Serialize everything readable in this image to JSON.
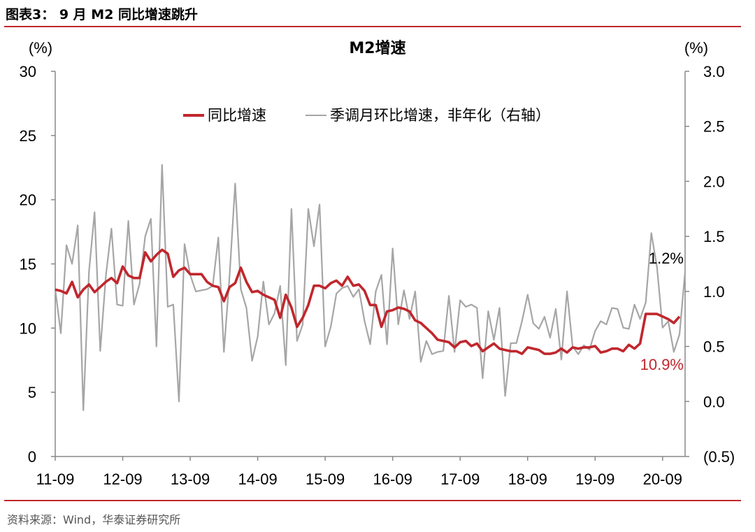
{
  "figure": {
    "title": "图表3：  9 月 M2 同比增速跳升",
    "source": "资料来源：Wind，华泰证券研究所"
  },
  "colors": {
    "yoy": "#c0272d",
    "mom": "#a6a6a6",
    "rule": "#c0272d",
    "axis": "#888888"
  },
  "chart_data": {
    "type": "line",
    "title": "M2增速",
    "left_unit": "(%)",
    "right_unit": "(%)",
    "left_ylim": [
      0,
      30
    ],
    "left_ticks": [
      "0",
      "5",
      "10",
      "15",
      "20",
      "25",
      "30"
    ],
    "right_ylim": [
      -0.5,
      3.0
    ],
    "right_ticks": [
      "(0.5)",
      "0.0",
      "0.5",
      "1.0",
      "1.5",
      "2.0",
      "2.5",
      "3.0"
    ],
    "x_start": "2011-09",
    "x_labels": [
      "11-09",
      "12-09",
      "13-09",
      "14-09",
      "15-09",
      "16-09",
      "17-09",
      "18-09",
      "19-09",
      "20-09"
    ],
    "legend_position": "top",
    "series": [
      {
        "name": "同比增速",
        "axis": "left",
        "values": [
          13.0,
          12.9,
          12.7,
          13.6,
          12.4,
          13.0,
          13.4,
          12.8,
          13.2,
          13.6,
          13.9,
          13.5,
          14.8,
          14.1,
          13.9,
          13.9,
          15.9,
          15.2,
          15.7,
          16.1,
          15.8,
          14.0,
          14.5,
          14.7,
          14.2,
          14.2,
          14.2,
          13.6,
          13.3,
          13.2,
          12.1,
          13.2,
          13.5,
          14.7,
          13.6,
          12.8,
          12.9,
          12.6,
          12.4,
          12.2,
          10.8,
          12.6,
          11.6,
          10.1,
          10.8,
          11.8,
          13.3,
          13.3,
          13.1,
          13.5,
          13.7,
          13.3,
          14.0,
          13.3,
          13.4,
          12.9,
          11.8,
          11.8,
          10.1,
          11.3,
          11.4,
          11.6,
          11.5,
          11.3,
          10.6,
          10.4,
          10.0,
          9.6,
          9.1,
          9.0,
          8.9,
          8.5,
          8.9,
          9.0,
          8.6,
          8.8,
          8.2,
          8.5,
          8.8,
          8.4,
          8.3,
          8.2,
          8.2,
          8.0,
          8.5,
          8.4,
          8.3,
          8.0,
          8.0,
          8.1,
          8.4,
          8.1,
          8.5,
          8.4,
          8.5,
          8.5,
          8.6,
          8.1,
          8.2,
          8.4,
          8.4,
          8.2,
          8.7,
          8.4,
          8.8,
          11.1,
          11.1,
          11.1,
          10.9,
          10.7,
          10.4,
          10.9
        ]
      },
      {
        "name": "季调月环比增速，非年化（右轴）",
        "axis": "right",
        "values": [
          1.02,
          0.62,
          1.42,
          1.25,
          1.6,
          -0.08,
          1.18,
          1.72,
          0.46,
          1.14,
          1.57,
          0.88,
          0.87,
          1.64,
          0.88,
          1.07,
          1.5,
          1.66,
          0.5,
          2.15,
          0.86,
          0.88,
          0.0,
          1.43,
          1.15,
          1.0,
          1.01,
          1.02,
          1.05,
          1.49,
          0.45,
          1.14,
          1.98,
          1.02,
          0.85,
          0.37,
          0.59,
          1.09,
          0.7,
          0.8,
          1.05,
          0.33,
          1.75,
          0.55,
          0.7,
          1.75,
          1.41,
          1.79,
          0.5,
          0.68,
          0.98,
          1.03,
          1.05,
          0.95,
          1.02,
          0.73,
          0.52,
          1.0,
          1.15,
          0.52,
          1.39,
          0.7,
          1.01,
          0.75,
          1.0,
          0.36,
          0.55,
          0.43,
          0.45,
          0.46,
          0.96,
          0.45,
          0.92,
          0.86,
          0.88,
          0.85,
          0.21,
          0.82,
          0.56,
          0.85,
          0.05,
          0.53,
          0.53,
          0.73,
          0.97,
          0.71,
          0.66,
          0.77,
          0.58,
          0.84,
          0.38,
          1.0,
          0.5,
          0.43,
          0.51,
          0.47,
          0.64,
          0.73,
          0.7,
          0.85,
          0.84,
          0.67,
          0.66,
          0.88,
          0.75,
          0.9,
          1.53,
          1.22,
          0.67,
          0.73,
          0.45,
          0.61,
          1.18
        ]
      }
    ],
    "annotations": [
      {
        "text": "1.2%",
        "series": "季调月环比增速，非年化（右轴）"
      },
      {
        "text": "10.9%",
        "series": "同比增速"
      }
    ]
  }
}
